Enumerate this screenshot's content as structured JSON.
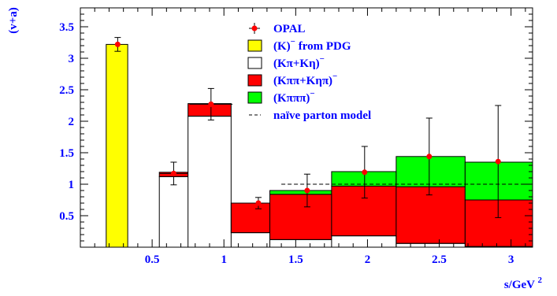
{
  "chart_data": {
    "type": "histogram",
    "ylabel": "(v+a)",
    "xlabel_main": "s/GeV",
    "xlabel_sup": "2",
    "xlim": [
      0.0,
      3.15
    ],
    "ylim": [
      0.0,
      3.8
    ],
    "xticks": [
      {
        "v": 0.5,
        "label": "0.5"
      },
      {
        "v": 1.0,
        "label": "1"
      },
      {
        "v": 1.5,
        "label": "1.5"
      },
      {
        "v": 2.0,
        "label": "2"
      },
      {
        "v": 2.5,
        "label": "2.5"
      },
      {
        "v": 3.0,
        "label": "3"
      }
    ],
    "yticks": [
      {
        "v": 0.5,
        "label": "0.5"
      },
      {
        "v": 1.0,
        "label": "1"
      },
      {
        "v": 1.5,
        "label": "1.5"
      },
      {
        "v": 2.0,
        "label": "2"
      },
      {
        "v": 2.5,
        "label": "2.5"
      },
      {
        "v": 3.0,
        "label": "3"
      },
      {
        "v": 3.5,
        "label": "3.5"
      }
    ],
    "colors": {
      "K_pdg": "#ffff00",
      "Kpi_Keta": "#ffffff",
      "Kpipi_Ketapi": "#ff0000",
      "Kpipipi": "#00ff00",
      "opal": "#ff0000",
      "outline": "#000000"
    },
    "bins": [
      {
        "x0": 0.18,
        "x1": 0.33,
        "K": 3.22,
        "Kpi": 0.0,
        "Kpipi": 0.0,
        "Kpipipi": 0.0
      },
      {
        "x0": 0.55,
        "x1": 0.75,
        "K": 0.0,
        "Kpi": 1.12,
        "Kpipi": 0.07,
        "Kpipipi": 0.0
      },
      {
        "x0": 0.75,
        "x1": 1.05,
        "K": 0.0,
        "Kpi": 2.08,
        "Kpipi": 0.2,
        "Kpipi_pad": 0.0,
        "Kpipipi": 0.0
      },
      {
        "x0": 1.05,
        "x1": 1.32,
        "K": 0.0,
        "Kpi": 0.23,
        "Kpipi": 0.47,
        "Kpipipi": 0.0
      },
      {
        "x0": 1.32,
        "x1": 1.75,
        "K": 0.0,
        "Kpi": 0.12,
        "Kpipi": 0.72,
        "Kpipipi": 0.06
      },
      {
        "x0": 1.75,
        "x1": 2.2,
        "K": 0.0,
        "Kpi": 0.18,
        "Kpipi": 0.79,
        "Kpipipi": 0.23
      },
      {
        "x0": 2.2,
        "x1": 2.68,
        "K": 0.0,
        "Kpi": 0.06,
        "Kpipi": 0.9,
        "Kpipipi": 0.48
      },
      {
        "x0": 2.68,
        "x1": 3.15,
        "K": 0.0,
        "Kpi": 0.01,
        "Kpipi": 0.74,
        "Kpipipi": 0.6
      }
    ],
    "opal_points": [
      {
        "x": 0.26,
        "y": 3.22,
        "err": 0.11,
        "xerr": 0.0
      },
      {
        "x": 0.65,
        "y": 1.17,
        "err": 0.18,
        "xerr": 0.1
      },
      {
        "x": 0.91,
        "y": 2.27,
        "err": 0.25,
        "xerr": 0.15
      },
      {
        "x": 1.24,
        "y": 0.7,
        "err": 0.09,
        "xerr": 0.0
      },
      {
        "x": 1.58,
        "y": 0.9,
        "err": 0.26,
        "xerr": 0.0
      },
      {
        "x": 1.98,
        "y": 1.19,
        "err": 0.41,
        "xerr": 0.0
      },
      {
        "x": 2.43,
        "y": 1.44,
        "err": 0.61,
        "xerr": 0.0
      },
      {
        "x": 2.91,
        "y": 1.36,
        "err": 0.89,
        "xerr": 0.0
      }
    ],
    "parton_model": {
      "x0": 1.4,
      "x1": 3.15,
      "y": 1.0
    },
    "legend": [
      {
        "key": "opal",
        "kind": "marker",
        "label": "OPAL"
      },
      {
        "key": "K_pdg",
        "kind": "box",
        "label": "(K)",
        "sup": "−",
        "suffix": " from PDG"
      },
      {
        "key": "Kpi_Keta",
        "kind": "box",
        "label": "(Kπ+Kη)",
        "sup": "−",
        "suffix": ""
      },
      {
        "key": "Kpipi_Ketapi",
        "kind": "box",
        "label": "(Kππ+Kηπ)",
        "sup": "−",
        "suffix": ""
      },
      {
        "key": "Kpipipi",
        "kind": "box",
        "label": "(Kπππ)",
        "sup": "−",
        "suffix": ""
      },
      {
        "key": "parton",
        "kind": "dash",
        "label": "naïve parton model",
        "sup": "",
        "suffix": ""
      }
    ]
  }
}
